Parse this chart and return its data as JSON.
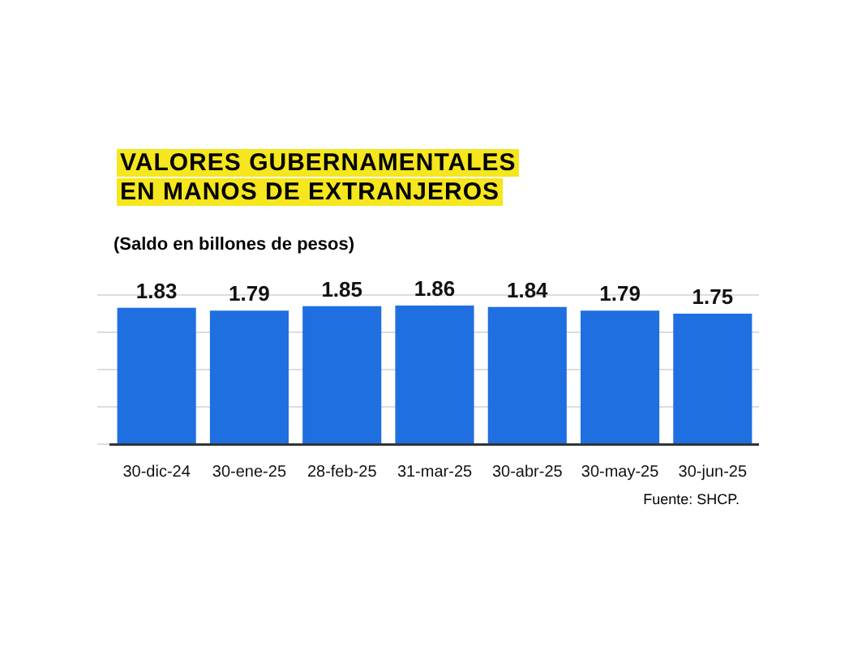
{
  "chart_data": {
    "type": "bar",
    "title": "VALORES GUBERNAMENTALES\nEN MANOS DE EXTRANJEROS",
    "subtitle": "(Saldo en billones de pesos)",
    "categories": [
      "30-dic-24",
      "30-ene-25",
      "28-feb-25",
      "31-mar-25",
      "30-abr-25",
      "30-may-25",
      "30-jun-25"
    ],
    "values": [
      1.83,
      1.79,
      1.85,
      1.86,
      1.84,
      1.79,
      1.75
    ],
    "color": "#1f6fe0",
    "data_labels": true,
    "grid": "y",
    "tick_labels": "x",
    "annotations": [
      "Fuente: SHCP."
    ]
  }
}
